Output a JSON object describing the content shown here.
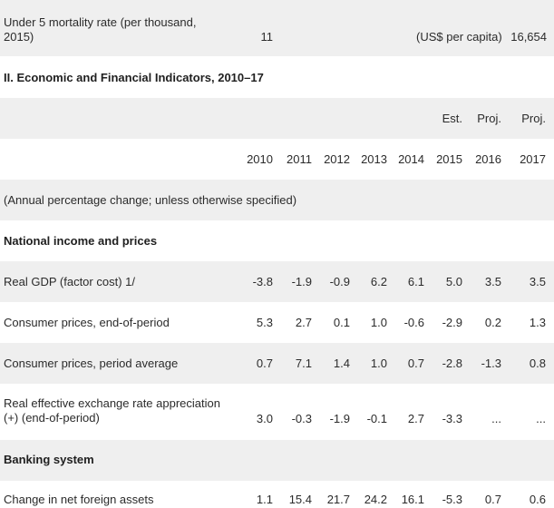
{
  "top_row": {
    "label_line1": "Under 5 mortality rate (per thousand,",
    "label_line2": "2015)",
    "value": "11",
    "gdp_label": "(US$ per capita)",
    "gdp_value": "16,654"
  },
  "section_title": "II. Economic and Financial Indicators, 2010–17",
  "header": {
    "status": [
      "",
      "",
      "",
      "",
      "",
      "Est.",
      "Proj.",
      "Proj."
    ],
    "years": [
      "2010",
      "2011",
      "2012",
      "2013",
      "2014",
      "2015",
      "2016",
      "2017"
    ]
  },
  "note": "(Annual percentage change; unless otherwise specified)",
  "groups": {
    "national": "National income and prices",
    "banking": "Banking system"
  },
  "rows": [
    {
      "label": "Real GDP (factor cost) 1/",
      "values": [
        "-3.8",
        "-1.9",
        "-0.9",
        "6.2",
        "6.1",
        "5.0",
        "3.5",
        "3.5"
      ]
    },
    {
      "label": "Consumer prices, end-of-period",
      "values": [
        "5.3",
        "2.7",
        "0.1",
        "1.0",
        "-0.6",
        "-2.9",
        "0.2",
        "1.3"
      ]
    },
    {
      "label": "Consumer prices, period average",
      "values": [
        "0.7",
        "7.1",
        "1.4",
        "1.0",
        "0.7",
        "-2.8",
        "-1.3",
        "0.8"
      ]
    },
    {
      "label_line1": "Real effective exchange rate appreciation",
      "label_line2": "(+) (end-of-period)",
      "values": [
        "3.0",
        "-0.3",
        "-1.9",
        "-0.1",
        "2.7",
        "-3.3",
        "...",
        "..."
      ]
    },
    {
      "label": "Change in net foreign assets",
      "values": [
        "1.1",
        "15.4",
        "21.7",
        "24.2",
        "16.1",
        "-5.3",
        "0.7",
        "0.6"
      ]
    }
  ]
}
